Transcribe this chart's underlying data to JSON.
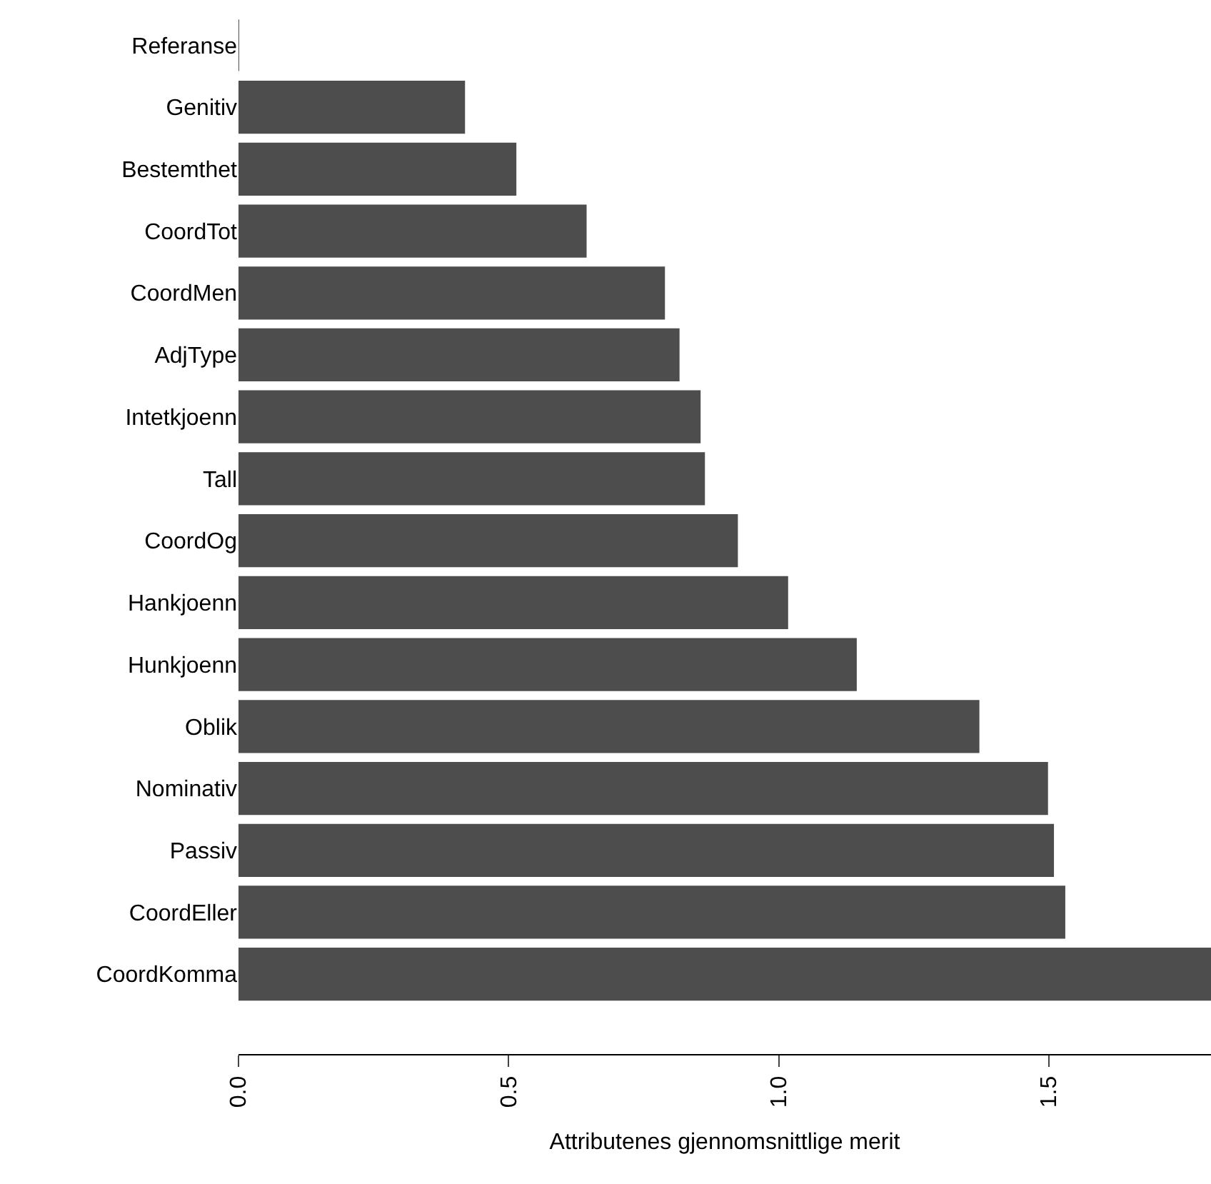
{
  "chart_data": {
    "type": "bar",
    "orientation": "horizontal",
    "xlabel": "Attributenes gjennomsnittlige merit",
    "categories": [
      "Referanse",
      "Genitiv",
      "Bestemthet",
      "CoordTot",
      "CoordMen",
      "AdjType",
      "Intetkjoenn",
      "Tall",
      "CoordOg",
      "Hankjoenn",
      "Hunkjoenn",
      "Oblik",
      "Nominativ",
      "Passiv",
      "CoordEller",
      "CoordKomma"
    ],
    "values": [
      0,
      0.418,
      0.513,
      0.643,
      0.788,
      0.815,
      0.854,
      0.862,
      0.923,
      1.016,
      1.143,
      1.37,
      1.497,
      1.508,
      1.529,
      1.8
    ],
    "color": "#4d4d4d",
    "xlim": [
      0,
      1.8
    ],
    "xticks": [
      {
        "value": 0,
        "label": "0.0"
      },
      0.5,
      {
        "value": 1,
        "label": "1.0"
      },
      1.5
    ],
    "grid": false
  }
}
